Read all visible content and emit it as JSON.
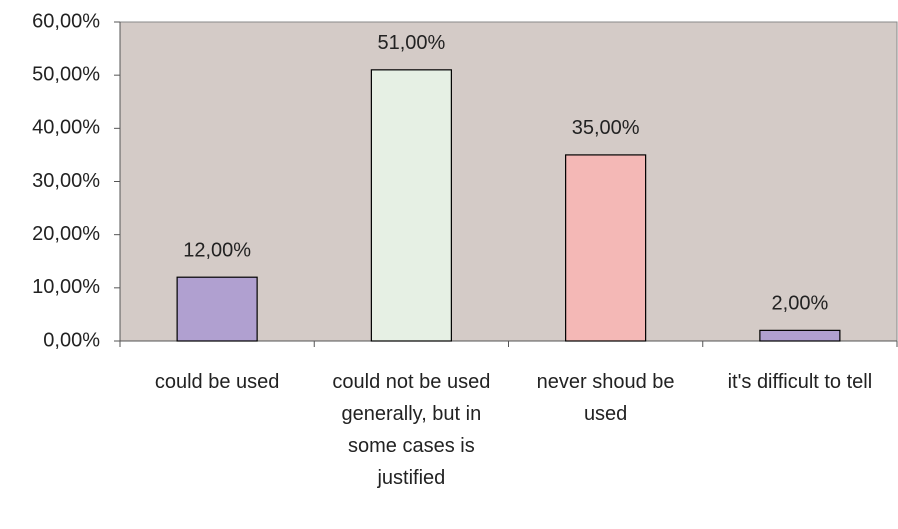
{
  "chart_data": {
    "type": "bar",
    "categories": [
      "could be used",
      "could not be used generally, but in some cases is justified",
      "never shoud be used",
      "it's difficult to tell"
    ],
    "values": [
      12,
      51,
      35,
      2
    ],
    "value_labels": [
      "12,00%",
      "51,00%",
      "35,00%",
      "2,00%"
    ],
    "colors": [
      "#b0a0d0",
      "#e6f0e4",
      "#f4b8b6",
      "#b0a0d0"
    ],
    "ylim": [
      0,
      60
    ],
    "yticks": [
      {
        "value": 0,
        "label": "0,00%"
      },
      {
        "value": 10,
        "label": "10,00%"
      },
      {
        "value": 20,
        "label": "20,00%"
      },
      {
        "value": 30,
        "label": "30,00%"
      },
      {
        "value": 40,
        "label": "40,00%"
      },
      {
        "value": 50,
        "label": "50,00%"
      },
      {
        "value": 60,
        "label": "60,00%"
      }
    ],
    "grid": false
  }
}
